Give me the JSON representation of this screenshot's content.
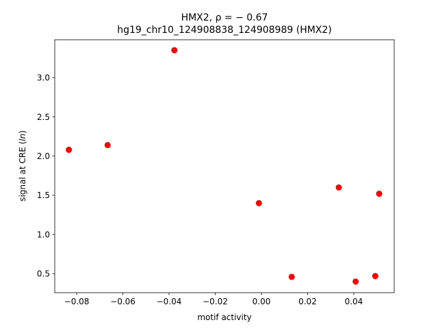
{
  "chart_data": {
    "type": "scatter",
    "title_line1": "HMX2, ρ = − 0.67",
    "title_line2": "hg19_chr10_124908838_124908989 (HMX2)",
    "xlabel": "motif activity",
    "ylabel_prefix": "signal at CRE (",
    "ylabel_italic": "ln",
    "ylabel_suffix": ")",
    "xlim": [
      -0.0895,
      0.0575
    ],
    "ylim": [
      0.258,
      3.483
    ],
    "x_ticks": [
      -0.08,
      -0.06,
      -0.04,
      -0.02,
      0.0,
      0.02,
      0.04
    ],
    "x_tick_labels": [
      "−0.08",
      "−0.06",
      "−0.04",
      "−0.02",
      "0.00",
      "0.02",
      "0.04"
    ],
    "y_ticks": [
      0.5,
      1.0,
      1.5,
      2.0,
      2.5,
      3.0
    ],
    "y_tick_labels": [
      "0.5",
      "1.0",
      "1.5",
      "2.0",
      "2.5",
      "3.0"
    ],
    "grid": false,
    "legend": "none",
    "marker_color": "#ff0000",
    "series": [
      {
        "x": [
          -0.0834,
          -0.0666,
          -0.0377,
          -0.0011,
          0.0131,
          0.0335,
          0.0408,
          0.0493,
          0.051
        ],
        "y": [
          2.08,
          2.14,
          3.35,
          1.4,
          0.46,
          1.6,
          0.4,
          0.47,
          1.52
        ]
      }
    ]
  }
}
